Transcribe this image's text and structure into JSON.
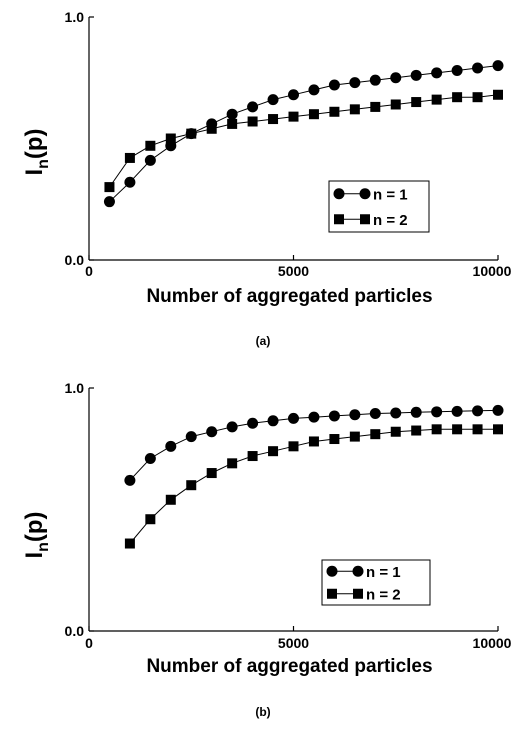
{
  "chart_data": [
    {
      "type": "line",
      "panel_label": "(a)",
      "title": "",
      "xlabel": "Number of aggregated particles",
      "ylabel": {
        "main": "I",
        "subscript": "n",
        "suffix": "(p)"
      },
      "xlim": [
        0,
        10000
      ],
      "ylim": [
        0.0,
        1.0
      ],
      "xticks": [
        {
          "value": 0,
          "label": "0"
        },
        {
          "value": 5000,
          "label": "5000"
        },
        {
          "value": 10000,
          "label": "10000"
        }
      ],
      "yticks": [
        {
          "value": 0.0,
          "label": "0.0"
        },
        {
          "value": 1.0,
          "label": "1.0"
        }
      ],
      "grid": false,
      "legend_position": "lower-right",
      "series": [
        {
          "name": "n = 1",
          "marker": "circle",
          "x": [
            500,
            1000,
            1500,
            2000,
            2500,
            3000,
            3500,
            4000,
            4500,
            5000,
            5500,
            6000,
            6500,
            7000,
            7500,
            8000,
            8500,
            9000,
            9500,
            10000
          ],
          "y": [
            0.24,
            0.32,
            0.41,
            0.47,
            0.52,
            0.56,
            0.6,
            0.63,
            0.66,
            0.68,
            0.7,
            0.72,
            0.73,
            0.74,
            0.75,
            0.76,
            0.77,
            0.78,
            0.79,
            0.8
          ]
        },
        {
          "name": "n = 2",
          "marker": "square",
          "x": [
            500,
            1000,
            1500,
            2000,
            2500,
            3000,
            3500,
            4000,
            4500,
            5000,
            5500,
            6000,
            6500,
            7000,
            7500,
            8000,
            8500,
            9000,
            9500,
            10000
          ],
          "y": [
            0.3,
            0.42,
            0.47,
            0.5,
            0.52,
            0.54,
            0.56,
            0.57,
            0.58,
            0.59,
            0.6,
            0.61,
            0.62,
            0.63,
            0.64,
            0.65,
            0.66,
            0.67,
            0.67,
            0.68
          ]
        }
      ]
    },
    {
      "type": "line",
      "panel_label": "(b)",
      "title": "",
      "xlabel": "Number of aggregated particles",
      "ylabel": {
        "main": "I",
        "subscript": "n",
        "suffix": "(p)"
      },
      "xlim": [
        0,
        10000
      ],
      "ylim": [
        0.0,
        1.0
      ],
      "xticks": [
        {
          "value": 0,
          "label": "0"
        },
        {
          "value": 5000,
          "label": "5000"
        },
        {
          "value": 10000,
          "label": "10000"
        }
      ],
      "yticks": [
        {
          "value": 0.0,
          "label": "0.0"
        },
        {
          "value": 1.0,
          "label": "1.0"
        }
      ],
      "grid": false,
      "legend_position": "lower-right",
      "series": [
        {
          "name": "n = 1",
          "marker": "circle",
          "x": [
            1000,
            1500,
            2000,
            2500,
            3000,
            3500,
            4000,
            4500,
            5000,
            5500,
            6000,
            6500,
            7000,
            7500,
            8000,
            8500,
            9000,
            9500,
            10000
          ],
          "y": [
            0.62,
            0.71,
            0.76,
            0.8,
            0.82,
            0.84,
            0.855,
            0.865,
            0.875,
            0.88,
            0.885,
            0.89,
            0.895,
            0.897,
            0.9,
            0.902,
            0.904,
            0.906,
            0.908
          ]
        },
        {
          "name": "n = 2",
          "marker": "square",
          "x": [
            1000,
            1500,
            2000,
            2500,
            3000,
            3500,
            4000,
            4500,
            5000,
            5500,
            6000,
            6500,
            7000,
            7500,
            8000,
            8500,
            9000,
            9500,
            10000
          ],
          "y": [
            0.36,
            0.46,
            0.54,
            0.6,
            0.65,
            0.69,
            0.72,
            0.74,
            0.76,
            0.78,
            0.79,
            0.8,
            0.81,
            0.82,
            0.825,
            0.83,
            0.83,
            0.83,
            0.83
          ]
        }
      ]
    }
  ]
}
